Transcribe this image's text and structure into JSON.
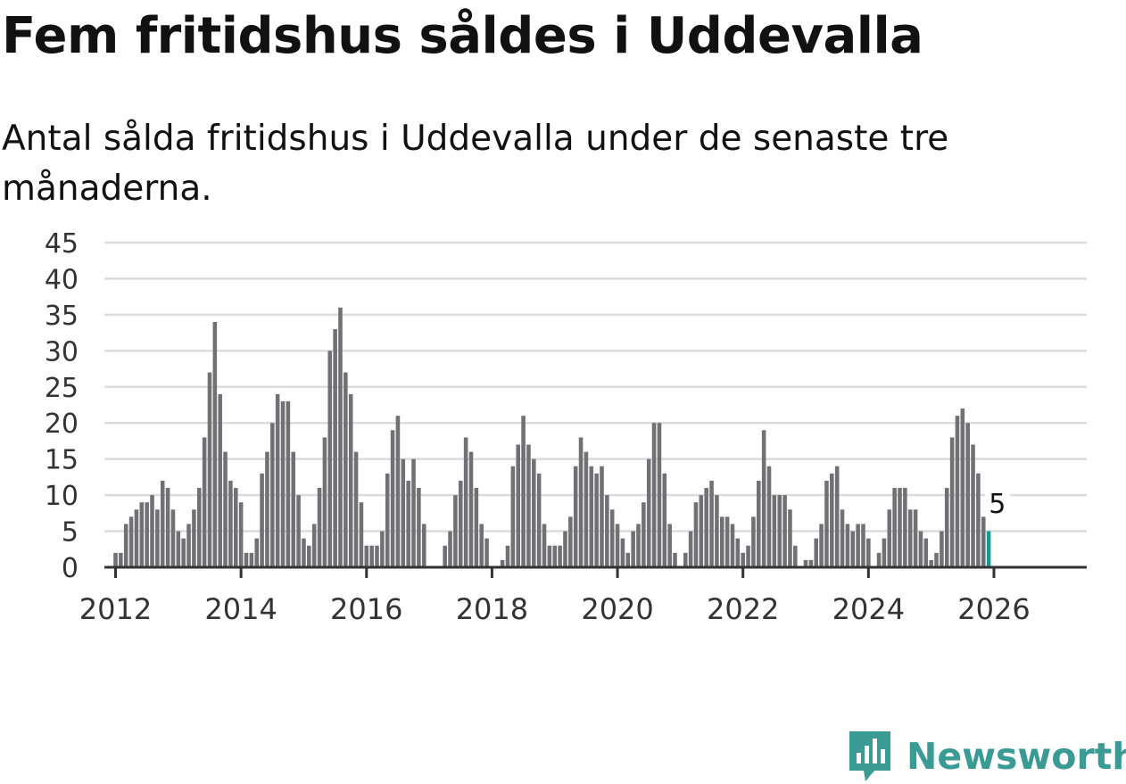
{
  "title": "Fem fritidshus såldes i Uddevalla",
  "subtitle": "Antal sålda fritidshus i Uddevalla under de senaste tre månaderna.",
  "brand": "Newsworthy",
  "colors": {
    "bar": "#717175",
    "highlight": "#1b9a95",
    "brand": "#3a9a94"
  },
  "chart_data": {
    "type": "bar",
    "title": "Fem fritidshus såldes i Uddevalla",
    "xlabel": "",
    "ylabel": "",
    "ylim": [
      0,
      45
    ],
    "y_ticks": [
      0,
      5,
      10,
      15,
      20,
      25,
      30,
      35,
      40,
      45
    ],
    "x_ticks": [
      "2012",
      "2014",
      "2016",
      "2018",
      "2020",
      "2022",
      "2024",
      "2026"
    ],
    "start": "2011-11",
    "end": "2026-02",
    "annotation": {
      "label": "5",
      "month": "2026-02",
      "value": 5
    },
    "values": [
      0,
      0,
      2,
      2,
      6,
      7,
      8,
      9,
      9,
      10,
      8,
      12,
      11,
      8,
      5,
      4,
      6,
      8,
      11,
      18,
      27,
      34,
      24,
      16,
      12,
      11,
      9,
      2,
      2,
      4,
      13,
      16,
      20,
      24,
      23,
      23,
      16,
      10,
      4,
      3,
      6,
      11,
      18,
      30,
      33,
      36,
      27,
      24,
      16,
      9,
      3,
      3,
      3,
      5,
      13,
      19,
      21,
      15,
      12,
      15,
      11,
      6,
      0,
      0,
      0,
      3,
      5,
      10,
      12,
      18,
      16,
      11,
      6,
      4,
      0,
      0,
      1,
      3,
      14,
      17,
      21,
      17,
      15,
      13,
      6,
      3,
      3,
      3,
      5,
      7,
      14,
      18,
      16,
      14,
      13,
      14,
      10,
      8,
      6,
      4,
      2,
      5,
      6,
      9,
      15,
      20,
      20,
      13,
      6,
      2,
      0,
      2,
      5,
      9,
      10,
      11,
      12,
      10,
      7,
      7,
      6,
      4,
      2,
      3,
      7,
      12,
      19,
      14,
      10,
      10,
      10,
      8,
      3,
      0,
      1,
      1,
      4,
      6,
      12,
      13,
      14,
      8,
      6,
      5,
      6,
      6,
      4,
      0,
      2,
      4,
      8,
      11,
      11,
      11,
      8,
      8,
      5,
      4,
      1,
      2,
      5,
      11,
      18,
      21,
      22,
      20,
      17,
      13,
      7,
      5
    ]
  }
}
